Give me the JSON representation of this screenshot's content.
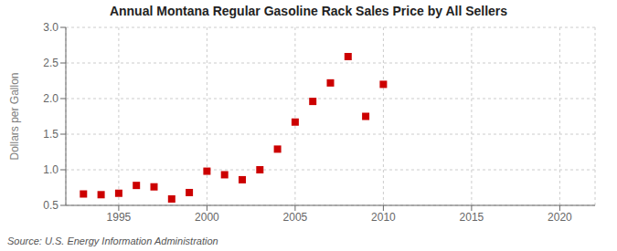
{
  "chart_data": {
    "type": "scatter",
    "title": "Annual Montana Regular Gasoline Rack Sales Price by All Sellers",
    "ylabel": "Dollars per Gallon",
    "annotations": [
      "Source: U.S. Energy Information Administration"
    ],
    "x": [
      1993,
      1994,
      1995,
      1996,
      1997,
      1998,
      1999,
      2000,
      2001,
      2002,
      2003,
      2004,
      2005,
      2006,
      2007,
      2008,
      2009,
      2010
    ],
    "values": [
      0.66,
      0.65,
      0.67,
      0.78,
      0.76,
      0.59,
      0.68,
      0.98,
      0.93,
      0.86,
      1.0,
      1.29,
      1.67,
      1.96,
      2.22,
      2.59,
      1.75,
      2.2
    ],
    "color": "#cc0000",
    "marker": "square",
    "xlim": [
      1992,
      2022
    ],
    "ylim": [
      0.5,
      3.0
    ],
    "xticks": [
      1995,
      2000,
      2005,
      2010,
      2015,
      2020
    ],
    "yticks": [
      0.5,
      {
        "value": 1.0,
        "label": "1.0"
      },
      1.5,
      {
        "value": 2.0,
        "label": "2.0"
      },
      2.5,
      {
        "value": 3.0,
        "label": "3.0"
      }
    ],
    "grid": true
  }
}
